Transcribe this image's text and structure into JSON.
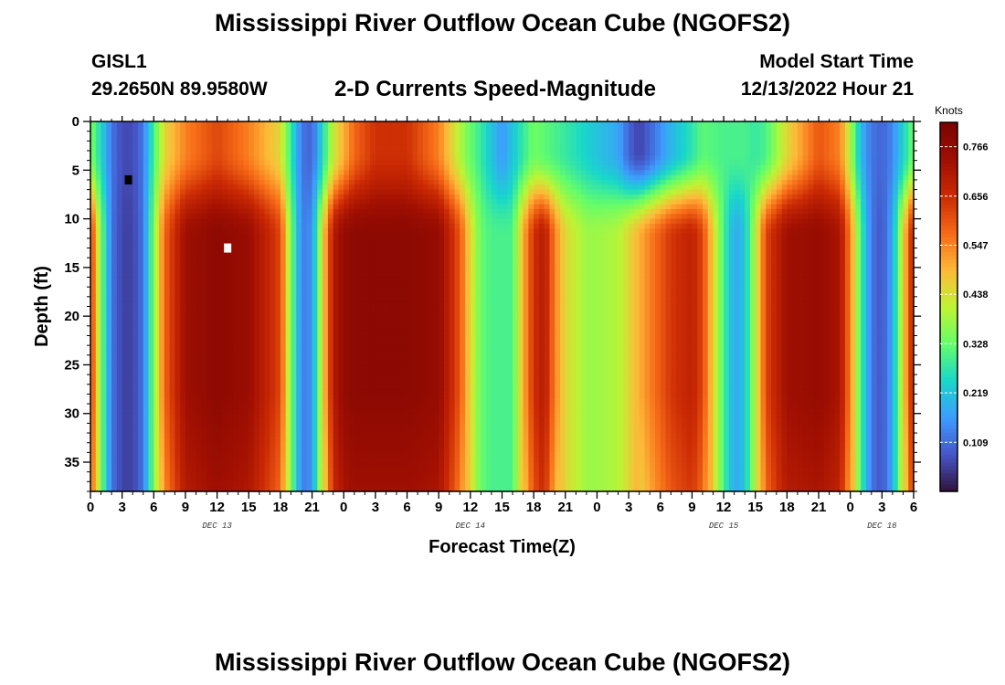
{
  "header": {
    "title": "Mississippi River Outflow Ocean Cube (NGOFS2)",
    "station": "GISL1",
    "coordinates": "29.2650N  89.9580W",
    "plot_name": "2-D Currents Speed-Magnitude",
    "model_start_label": "Model Start Time",
    "model_start_value": "12/13/2022 Hour 21"
  },
  "footer": {
    "title": "Mississippi River Outflow Ocean Cube (NGOFS2)"
  },
  "chart_data": {
    "type": "heatmap",
    "title": "2-D Currents Speed-Magnitude",
    "xlabel": "Forecast Time(Z)",
    "ylabel": "Depth (ft)",
    "x_range_hours": [
      0,
      78
    ],
    "y_range_ft": [
      0,
      38
    ],
    "y_inverted": true,
    "x_ticks": [
      {
        "hour": 0,
        "label": "0"
      },
      {
        "hour": 3,
        "label": "3"
      },
      {
        "hour": 6,
        "label": "6"
      },
      {
        "hour": 9,
        "label": "9"
      },
      {
        "hour": 12,
        "label": "12"
      },
      {
        "hour": 15,
        "label": "15"
      },
      {
        "hour": 18,
        "label": "18"
      },
      {
        "hour": 21,
        "label": "21"
      },
      {
        "hour": 24,
        "label": "0"
      },
      {
        "hour": 27,
        "label": "3"
      },
      {
        "hour": 30,
        "label": "6"
      },
      {
        "hour": 33,
        "label": "9"
      },
      {
        "hour": 36,
        "label": "12"
      },
      {
        "hour": 39,
        "label": "15"
      },
      {
        "hour": 42,
        "label": "18"
      },
      {
        "hour": 45,
        "label": "21"
      },
      {
        "hour": 48,
        "label": "0"
      },
      {
        "hour": 51,
        "label": "3"
      },
      {
        "hour": 54,
        "label": "6"
      },
      {
        "hour": 57,
        "label": "9"
      },
      {
        "hour": 60,
        "label": "12"
      },
      {
        "hour": 63,
        "label": "15"
      },
      {
        "hour": 66,
        "label": "18"
      },
      {
        "hour": 69,
        "label": "21"
      },
      {
        "hour": 72,
        "label": "0"
      },
      {
        "hour": 75,
        "label": "3"
      },
      {
        "hour": 78,
        "label": "6"
      }
    ],
    "y_ticks": [
      0,
      5,
      10,
      15,
      20,
      25,
      30,
      35
    ],
    "date_labels": [
      {
        "hour": 12,
        "label": "DEC 13"
      },
      {
        "hour": 36,
        "label": "DEC 14"
      },
      {
        "hour": 60,
        "label": "DEC 15"
      },
      {
        "hour": 75,
        "label": "DEC 16"
      }
    ],
    "colorbar": {
      "units": "Knots",
      "min": 0.0,
      "max": 0.82,
      "ticks": [
        0.109,
        0.219,
        0.328,
        0.438,
        0.547,
        0.656,
        0.766
      ],
      "tick_labels": [
        "0.109",
        "0.219",
        "0.328",
        "0.438",
        "0.547",
        "0.656",
        "0.766"
      ]
    },
    "markers": [
      {
        "label": "min",
        "hour": 3.6,
        "depth": 6,
        "color": "#000000"
      },
      {
        "label": "max",
        "hour": 13.0,
        "depth": 13,
        "color": "#ffffff"
      }
    ],
    "time_profile": {
      "description": "approximate current speed (knots) vs forecast hour at surface and at depth",
      "hours": [
        0,
        1,
        2,
        3,
        4,
        5,
        6,
        7,
        9,
        12,
        15,
        18,
        19,
        20,
        21,
        22,
        23,
        24,
        25,
        27,
        30,
        33,
        35,
        36,
        37,
        38,
        39,
        40,
        41,
        42,
        43,
        44,
        45,
        47,
        48,
        50,
        51,
        52,
        53,
        55,
        57,
        58,
        60,
        61,
        62,
        63,
        64,
        66,
        69,
        71,
        72,
        73,
        74,
        75,
        76,
        77,
        78
      ],
      "surface_knots": [
        0.35,
        0.25,
        0.12,
        0.07,
        0.07,
        0.12,
        0.3,
        0.45,
        0.55,
        0.62,
        0.55,
        0.45,
        0.28,
        0.12,
        0.1,
        0.25,
        0.42,
        0.5,
        0.58,
        0.65,
        0.65,
        0.55,
        0.4,
        0.33,
        0.28,
        0.22,
        0.16,
        0.22,
        0.28,
        0.34,
        0.32,
        0.3,
        0.28,
        0.24,
        0.22,
        0.18,
        0.1,
        0.06,
        0.1,
        0.2,
        0.27,
        0.32,
        0.3,
        0.3,
        0.3,
        0.28,
        0.3,
        0.45,
        0.6,
        0.55,
        0.4,
        0.2,
        0.12,
        0.1,
        0.14,
        0.24,
        0.34
      ],
      "deep_knots": [
        0.65,
        0.35,
        0.12,
        0.06,
        0.06,
        0.12,
        0.35,
        0.58,
        0.74,
        0.78,
        0.75,
        0.62,
        0.35,
        0.13,
        0.15,
        0.45,
        0.7,
        0.76,
        0.78,
        0.78,
        0.78,
        0.76,
        0.6,
        0.45,
        0.33,
        0.3,
        0.3,
        0.3,
        0.5,
        0.65,
        0.7,
        0.55,
        0.45,
        0.38,
        0.38,
        0.4,
        0.45,
        0.5,
        0.55,
        0.64,
        0.68,
        0.62,
        0.3,
        0.18,
        0.22,
        0.4,
        0.62,
        0.74,
        0.76,
        0.72,
        0.55,
        0.3,
        0.12,
        0.08,
        0.18,
        0.45,
        0.7
      ]
    }
  }
}
